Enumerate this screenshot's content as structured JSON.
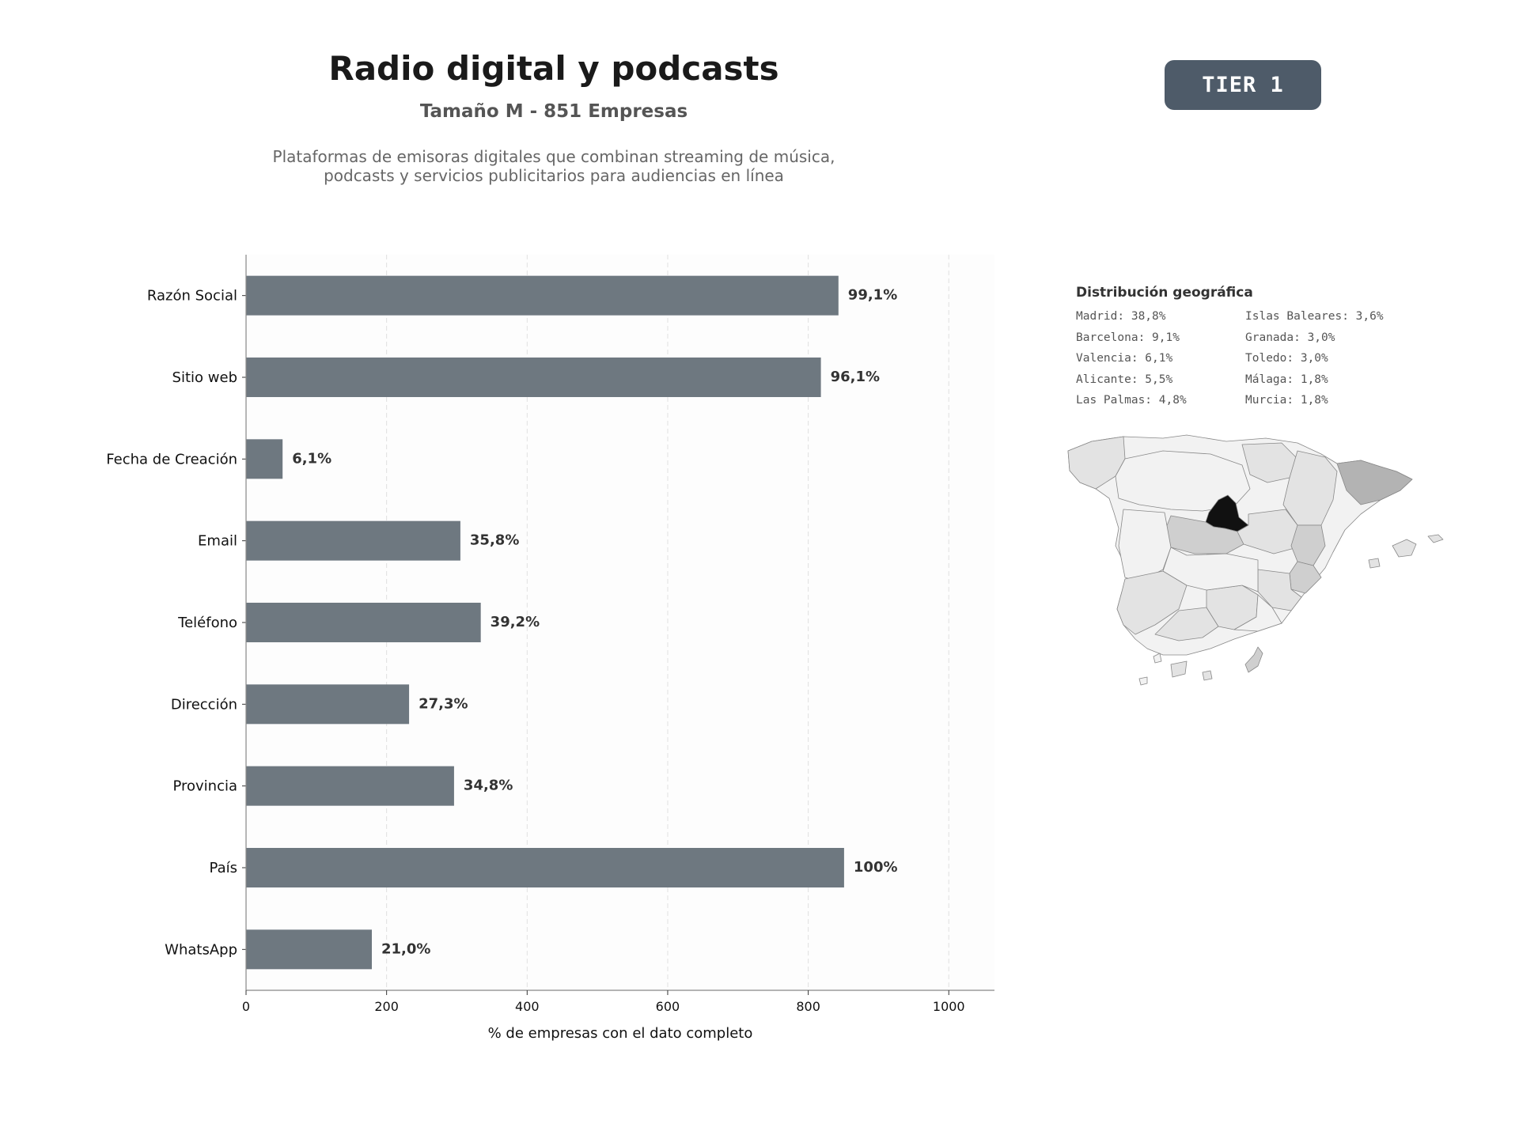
{
  "header": {
    "title": "Radio digital y podcasts",
    "subtitle": "Tamaño M - 851 Empresas",
    "description_lines": [
      "Plataformas de emisoras digitales que combinan streaming de música,",
      "podcasts y servicios publicitarios para audiencias en línea"
    ],
    "tier_label": "TIER 1"
  },
  "chart_data": {
    "type": "bar",
    "orientation": "horizontal",
    "categories": [
      "Razón Social",
      "Sitio web",
      "Fecha de Creación",
      "Email",
      "Teléfono",
      "Dirección",
      "Provincia",
      "País",
      "WhatsApp"
    ],
    "values": [
      843,
      818,
      52,
      305,
      334,
      232,
      296,
      851,
      179
    ],
    "data_labels": [
      "99,1%",
      "96,1%",
      "6,1%",
      "35,8%",
      "39,2%",
      "27,3%",
      "34,8%",
      "100%",
      "21,0%"
    ],
    "xlabel": "% de empresas con el dato completo",
    "xlim": [
      0,
      1065
    ],
    "xticks": [
      0,
      200,
      400,
      600,
      800,
      1000
    ],
    "grid": "vertical-dashed",
    "bar_color": "#6e7880"
  },
  "geo": {
    "title": "Distribución geográfica",
    "items": [
      "Madrid: 38,8%",
      "Barcelona: 9,1%",
      "Valencia: 6,1%",
      "Alicante: 5,5%",
      "Las Palmas: 4,8%",
      "Islas Baleares: 3,6%",
      "Granada: 3,0%",
      "Toledo: 3,0%",
      "Málaga: 1,8%",
      "Murcia: 1,8%"
    ],
    "map_colors": {
      "highlight": "#111111",
      "high": "#b3b3b3",
      "medium": "#cfcfcf",
      "low": "#e3e3e3",
      "base": "#f2f2f2"
    }
  }
}
